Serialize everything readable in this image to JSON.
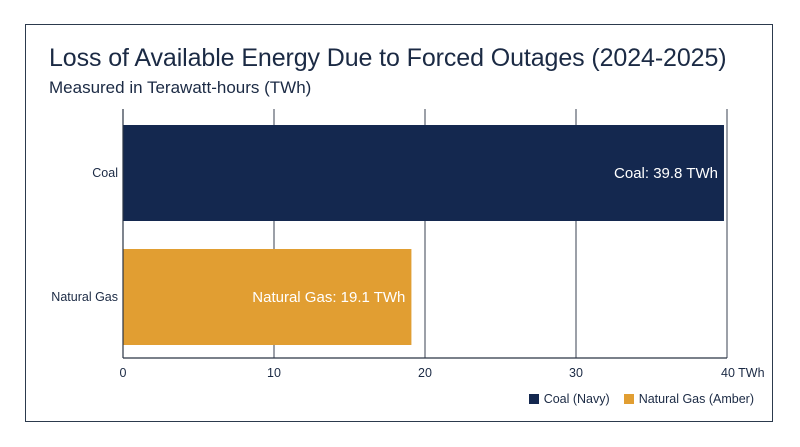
{
  "chart_data": {
    "type": "bar",
    "orientation": "horizontal",
    "title": "Loss of Available Energy Due to Forced Outages (2024-2025)",
    "subtitle": "Measured in Terawatt-hours (TWh)",
    "categories": [
      "Coal",
      "Natural Gas"
    ],
    "values": [
      39.8,
      19.1
    ],
    "data_labels": [
      "Coal: 39.8 TWh",
      "Natural Gas: 19.1 TWh"
    ],
    "colors": [
      "#14284f",
      "#e19e32"
    ],
    "xlim": [
      0,
      40
    ],
    "x_ticks": [
      0,
      10,
      20,
      30,
      40
    ],
    "x_tick_labels": [
      "0",
      "10",
      "20",
      "30",
      "40 TWh"
    ],
    "grid": true,
    "legend": {
      "placement": "bottom-right",
      "entries": [
        {
          "label": "Coal (Navy)",
          "color": "#14284f"
        },
        {
          "label": "Natural Gas (Amber)",
          "color": "#e19e32"
        }
      ]
    }
  }
}
